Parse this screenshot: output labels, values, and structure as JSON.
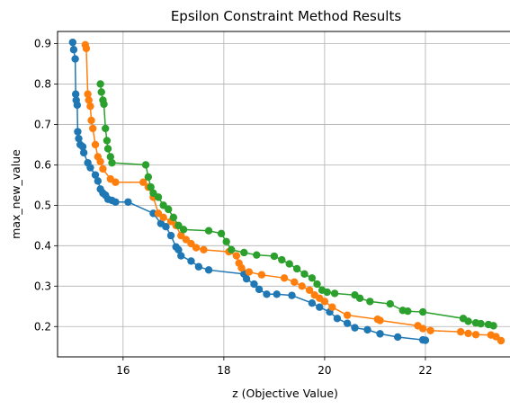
{
  "chart_data": {
    "type": "line",
    "title": "Epsilon Constraint Method Results",
    "xlabel": "z (Objective Value)",
    "ylabel": "max_new_value",
    "xlim": [
      14.7,
      23.75
    ],
    "ylim": [
      0.125,
      0.93
    ],
    "xticks": [
      16,
      18,
      20,
      22
    ],
    "yticks": [
      0.2,
      0.3,
      0.4,
      0.5,
      0.6,
      0.7,
      0.8,
      0.9
    ],
    "grid": true,
    "markers": "circle",
    "series": [
      {
        "color": "#1f77b4",
        "x": [
          15.0,
          15.02,
          15.05,
          15.06,
          15.07,
          15.09,
          15.1,
          15.12,
          15.15,
          15.2,
          15.22,
          15.3,
          15.35,
          15.45,
          15.5,
          15.55,
          15.6,
          15.65,
          15.7,
          15.78,
          15.85,
          16.1,
          16.6,
          16.75,
          16.85,
          16.95,
          17.05,
          17.1,
          17.15,
          17.35,
          17.5,
          17.7,
          18.4,
          18.45,
          18.6,
          18.7,
          18.85,
          19.05,
          19.35,
          19.75,
          19.9,
          20.1,
          20.25,
          20.45,
          20.6,
          20.85,
          21.1,
          21.45,
          21.95,
          22.0
        ],
        "y": [
          0.903,
          0.885,
          0.862,
          0.775,
          0.76,
          0.748,
          0.682,
          0.665,
          0.65,
          0.645,
          0.63,
          0.605,
          0.593,
          0.575,
          0.56,
          0.54,
          0.53,
          0.525,
          0.515,
          0.512,
          0.508,
          0.508,
          0.48,
          0.455,
          0.447,
          0.425,
          0.397,
          0.39,
          0.375,
          0.362,
          0.348,
          0.34,
          0.33,
          0.318,
          0.305,
          0.292,
          0.28,
          0.28,
          0.277,
          0.258,
          0.248,
          0.236,
          0.22,
          0.208,
          0.197,
          0.192,
          0.182,
          0.174,
          0.167,
          0.166
        ]
      },
      {
        "color": "#ff7f0e",
        "x": [
          15.25,
          15.27,
          15.3,
          15.32,
          15.35,
          15.37,
          15.4,
          15.45,
          15.5,
          15.55,
          15.6,
          15.75,
          15.85,
          16.4,
          16.5,
          16.6,
          16.7,
          16.8,
          16.95,
          17.05,
          17.15,
          17.25,
          17.35,
          17.45,
          17.6,
          18.1,
          18.25,
          18.3,
          18.35,
          18.5,
          18.75,
          19.2,
          19.4,
          19.55,
          19.7,
          19.8,
          19.9,
          20.0,
          20.15,
          20.45,
          21.05,
          21.1,
          21.85,
          21.95,
          22.1,
          22.7,
          22.85,
          23.0,
          23.3,
          23.4,
          23.5
        ],
        "y": [
          0.897,
          0.888,
          0.775,
          0.76,
          0.745,
          0.71,
          0.69,
          0.65,
          0.62,
          0.608,
          0.59,
          0.565,
          0.557,
          0.557,
          0.545,
          0.52,
          0.48,
          0.47,
          0.46,
          0.45,
          0.425,
          0.415,
          0.405,
          0.395,
          0.39,
          0.385,
          0.375,
          0.357,
          0.345,
          0.335,
          0.328,
          0.32,
          0.31,
          0.3,
          0.29,
          0.278,
          0.27,
          0.262,
          0.248,
          0.228,
          0.218,
          0.215,
          0.202,
          0.195,
          0.19,
          0.187,
          0.183,
          0.18,
          0.179,
          0.175,
          0.165
        ]
      },
      {
        "color": "#2ca02c",
        "x": [
          15.55,
          15.57,
          15.6,
          15.62,
          15.65,
          15.68,
          15.7,
          15.75,
          15.78,
          16.45,
          16.5,
          16.55,
          16.6,
          16.7,
          16.8,
          16.9,
          17.0,
          17.1,
          17.2,
          17.7,
          17.95,
          18.05,
          18.15,
          18.4,
          18.65,
          19.0,
          19.15,
          19.3,
          19.45,
          19.6,
          19.75,
          19.85,
          19.95,
          20.05,
          20.2,
          20.6,
          20.7,
          20.9,
          21.3,
          21.55,
          21.65,
          21.95,
          22.75,
          22.85,
          23.0,
          23.1,
          23.25,
          23.35
        ],
        "y": [
          0.8,
          0.78,
          0.76,
          0.75,
          0.69,
          0.66,
          0.64,
          0.62,
          0.605,
          0.6,
          0.57,
          0.545,
          0.53,
          0.52,
          0.5,
          0.49,
          0.47,
          0.45,
          0.44,
          0.437,
          0.43,
          0.41,
          0.39,
          0.383,
          0.377,
          0.374,
          0.365,
          0.355,
          0.343,
          0.33,
          0.32,
          0.305,
          0.29,
          0.285,
          0.282,
          0.278,
          0.27,
          0.262,
          0.256,
          0.24,
          0.238,
          0.236,
          0.22,
          0.213,
          0.209,
          0.207,
          0.205,
          0.202
        ]
      }
    ]
  }
}
